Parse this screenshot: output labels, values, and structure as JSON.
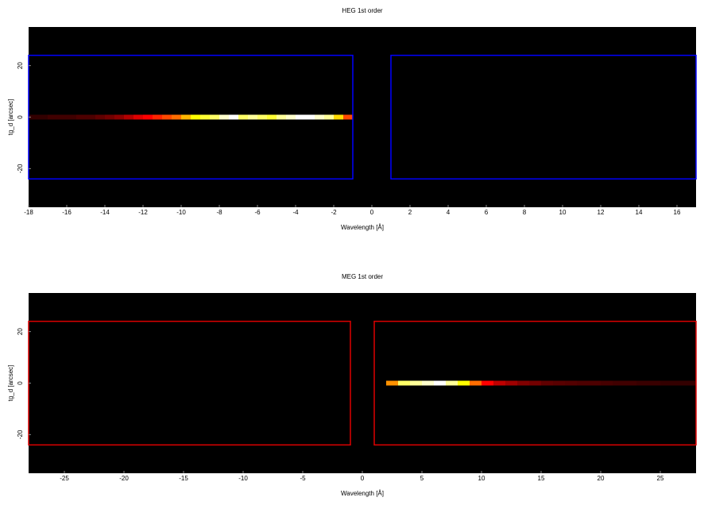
{
  "chart_data": [
    {
      "type": "spectrum-image",
      "title": "HEG 1st order",
      "xlabel": "Wavelength [Å]",
      "ylabel": "tg_d [arcsec]",
      "xlim": [
        -18,
        17
      ],
      "ylim": [
        -35,
        35
      ],
      "xticks": [
        -18,
        -16,
        -14,
        -12,
        -10,
        -8,
        -6,
        -4,
        -2,
        0,
        2,
        4,
        6,
        8,
        10,
        12,
        14,
        16
      ],
      "yticks": [
        -20,
        0,
        20
      ],
      "colormap": "hot",
      "region_color": "#0000ff",
      "regions": [
        {
          "x": [
            -18,
            -1
          ],
          "y": [
            -24,
            24
          ]
        },
        {
          "x": [
            1,
            17
          ],
          "y": [
            -24,
            24
          ]
        }
      ],
      "streak": {
        "x": [
          -17.75,
          -17.25,
          -16.75,
          -16.25,
          -15.75,
          -15.25,
          -14.75,
          -14.25,
          -13.75,
          -13.25,
          -12.75,
          -12.25,
          -11.75,
          -11.25,
          -10.75,
          -10.25,
          -9.75,
          -9.25,
          -8.75,
          -8.25,
          -7.75,
          -7.25,
          -6.75,
          -6.25,
          -5.75,
          -5.25,
          -4.75,
          -4.25,
          -3.75,
          -3.25,
          -2.75,
          -2.25,
          -1.75,
          -1.25
        ],
        "intensity": [
          0.08,
          0.08,
          0.1,
          0.1,
          0.1,
          0.12,
          0.12,
          0.15,
          0.18,
          0.22,
          0.28,
          0.35,
          0.4,
          0.45,
          0.5,
          0.55,
          0.65,
          0.75,
          0.8,
          0.85,
          0.95,
          1,
          0.85,
          0.9,
          0.85,
          0.8,
          0.9,
          0.95,
          1,
          1,
          0.95,
          0.9,
          0.7,
          0.5
        ]
      }
    },
    {
      "type": "spectrum-image",
      "title": "MEG 1st order",
      "xlabel": "Wavelength [Å]",
      "ylabel": "tg_d [arcsec]",
      "xlim": [
        -28,
        28
      ],
      "ylim": [
        -35,
        35
      ],
      "xticks": [
        -25,
        -20,
        -15,
        -10,
        -5,
        0,
        5,
        10,
        15,
        20,
        25
      ],
      "yticks": [
        -20,
        0,
        20
      ],
      "colormap": "hot",
      "region_color": "#dd0000",
      "regions": [
        {
          "x": [
            -28,
            -1
          ],
          "y": [
            -24,
            24
          ]
        },
        {
          "x": [
            1,
            28
          ],
          "y": [
            -24,
            24
          ]
        }
      ],
      "streak": {
        "x": [
          2.5,
          3.5,
          4.5,
          5.5,
          6.5,
          7.5,
          8.5,
          9.5,
          10.5,
          11.5,
          12.5,
          13.5,
          14.5,
          15.5,
          16.5,
          17.5,
          18.5,
          19.5,
          20.5,
          21.5,
          22.5,
          23.5,
          24.5,
          25.5,
          26.5,
          27.5
        ],
        "intensity": [
          0.6,
          0.85,
          0.9,
          0.95,
          1,
          0.9,
          0.75,
          0.55,
          0.4,
          0.3,
          0.25,
          0.2,
          0.18,
          0.15,
          0.14,
          0.13,
          0.12,
          0.12,
          0.11,
          0.1,
          0.1,
          0.09,
          0.09,
          0.08,
          0.08,
          0.08
        ]
      }
    }
  ]
}
